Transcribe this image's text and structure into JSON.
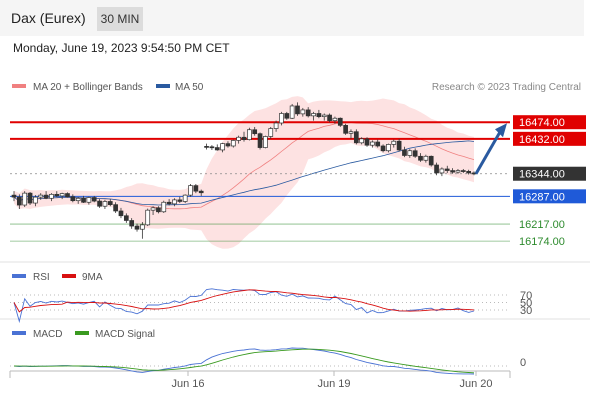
{
  "header": {
    "instrument": "Dax (Eurex)",
    "timeframe": "30 MIN",
    "timestamp": "Monday, June 19, 2023 9:54:50 PM CET"
  },
  "chart_data": {
    "type": "candlestick",
    "legend": [
      {
        "label": "MA 20 + Bollinger Bands",
        "color": "#f08080"
      },
      {
        "label": "MA 50",
        "color": "#2a5aa0"
      }
    ],
    "credit": "Research © 2023 Trading Central",
    "price_range": [
      16144,
      16530
    ],
    "levels": [
      {
        "label": "16474.00",
        "value": 16474,
        "color": "#e00000",
        "style": "resistance"
      },
      {
        "label": "16432.00",
        "value": 16432,
        "color": "#e00000",
        "style": "resistance"
      },
      {
        "label": "16344.00",
        "value": 16344,
        "color": "#333333",
        "style": "last"
      },
      {
        "label": "16287.00",
        "value": 16287,
        "color": "#1f5ad8",
        "style": "pivot"
      },
      {
        "label": "16217.00",
        "value": 16217,
        "color": "#2e8b2e",
        "style": "support"
      },
      {
        "label": "16174.00",
        "value": 16174,
        "color": "#2e8b2e",
        "style": "support"
      }
    ],
    "x_labels": [
      "Jun 16",
      "Jun 19",
      "Jun 20"
    ],
    "candles": [
      [
        16290,
        16300,
        16275,
        16285
      ],
      [
        16285,
        16292,
        16255,
        16265
      ],
      [
        16265,
        16300,
        16260,
        16295
      ],
      [
        16295,
        16298,
        16265,
        16270
      ],
      [
        16270,
        16290,
        16262,
        16285
      ],
      [
        16285,
        16295,
        16278,
        16290
      ],
      [
        16290,
        16300,
        16280,
        16282
      ],
      [
        16282,
        16295,
        16275,
        16292
      ],
      [
        16292,
        16300,
        16285,
        16288
      ],
      [
        16288,
        16296,
        16280,
        16294
      ],
      [
        16294,
        16297,
        16284,
        16286
      ],
      [
        16286,
        16292,
        16272,
        16276
      ],
      [
        16276,
        16285,
        16268,
        16282
      ],
      [
        16282,
        16288,
        16270,
        16272
      ],
      [
        16272,
        16286,
        16266,
        16284
      ],
      [
        16284,
        16288,
        16272,
        16275
      ],
      [
        16275,
        16280,
        16258,
        16262
      ],
      [
        16262,
        16278,
        16255,
        16274
      ],
      [
        16274,
        16280,
        16262,
        16266
      ],
      [
        16266,
        16272,
        16245,
        16250
      ],
      [
        16250,
        16258,
        16232,
        16238
      ],
      [
        16238,
        16244,
        16220,
        16226
      ],
      [
        16226,
        16232,
        16205,
        16212
      ],
      [
        16212,
        16218,
        16198,
        16204
      ],
      [
        16204,
        16222,
        16180,
        16215
      ],
      [
        16215,
        16256,
        16212,
        16252
      ],
      [
        16252,
        16262,
        16240,
        16258
      ],
      [
        16258,
        16262,
        16244,
        16248
      ],
      [
        16248,
        16276,
        16245,
        16272
      ],
      [
        16272,
        16280,
        16264,
        16268
      ],
      [
        16268,
        16282,
        16262,
        16278
      ],
      [
        16278,
        16286,
        16270,
        16274
      ],
      [
        16274,
        16292,
        16270,
        16290
      ],
      [
        16290,
        16318,
        16286,
        16314
      ],
      [
        16314,
        16318,
        16295,
        16300
      ],
      [
        16300,
        16304,
        16288,
        16296
      ],
      [
        16413,
        16420,
        16405,
        16412
      ],
      [
        16412,
        16416,
        16404,
        16410
      ],
      [
        16410,
        16418,
        16402,
        16404
      ],
      [
        16404,
        16422,
        16398,
        16420
      ],
      [
        16420,
        16426,
        16410,
        16414
      ],
      [
        16414,
        16430,
        16410,
        16428
      ],
      [
        16428,
        16440,
        16420,
        16436
      ],
      [
        16436,
        16450,
        16425,
        16430
      ],
      [
        16430,
        16460,
        16428,
        16455
      ],
      [
        16455,
        16462,
        16440,
        16445
      ],
      [
        16445,
        16448,
        16405,
        16410
      ],
      [
        16410,
        16440,
        16408,
        16438
      ],
      [
        16438,
        16462,
        16432,
        16458
      ],
      [
        16458,
        16478,
        16450,
        16472
      ],
      [
        16472,
        16500,
        16466,
        16496
      ],
      [
        16496,
        16500,
        16480,
        16484
      ],
      [
        16484,
        16520,
        16482,
        16515
      ],
      [
        16515,
        16524,
        16490,
        16495
      ],
      [
        16495,
        16510,
        16488,
        16505
      ],
      [
        16505,
        16512,
        16486,
        16490
      ],
      [
        16490,
        16500,
        16478,
        16496
      ],
      [
        16496,
        16505,
        16484,
        16488
      ],
      [
        16488,
        16496,
        16478,
        16492
      ],
      [
        16492,
        16496,
        16474,
        16478
      ],
      [
        16478,
        16488,
        16470,
        16484
      ],
      [
        16484,
        16486,
        16462,
        16466
      ],
      [
        16466,
        16470,
        16442,
        16446
      ],
      [
        16446,
        16456,
        16432,
        16450
      ],
      [
        16450,
        16456,
        16418,
        16422
      ],
      [
        16422,
        16436,
        16418,
        16432
      ],
      [
        16432,
        16436,
        16412,
        16416
      ],
      [
        16416,
        16428,
        16410,
        16424
      ],
      [
        16424,
        16430,
        16410,
        16414
      ],
      [
        16414,
        16418,
        16398,
        16402
      ],
      [
        16402,
        16420,
        16398,
        16418
      ],
      [
        16418,
        16430,
        16410,
        16426
      ],
      [
        16426,
        16432,
        16400,
        16404
      ],
      [
        16404,
        16412,
        16386,
        16390
      ],
      [
        16390,
        16406,
        16384,
        16402
      ],
      [
        16402,
        16408,
        16384,
        16388
      ],
      [
        16388,
        16396,
        16374,
        16378
      ],
      [
        16378,
        16392,
        16372,
        16388
      ],
      [
        16388,
        16390,
        16362,
        16366
      ],
      [
        16366,
        16372,
        16340,
        16346
      ],
      [
        16346,
        16360,
        16338,
        16356
      ],
      [
        16356,
        16364,
        16346,
        16352
      ],
      [
        16352,
        16358,
        16344,
        16348
      ],
      [
        16348,
        16356,
        16344,
        16352
      ],
      [
        16352,
        16356,
        16346,
        16350
      ],
      [
        16350,
        16354,
        16342,
        16346
      ],
      [
        16346,
        16350,
        16340,
        16344
      ]
    ],
    "projection": {
      "from": 16344,
      "to": 16474,
      "color": "#2a5aa0"
    },
    "indicators": [
      {
        "name": "RSI",
        "color": "#4a72d4",
        "signal_name": "9MA",
        "signal_color": "#d81010",
        "levels": [
          "70",
          "50",
          "30"
        ]
      },
      {
        "name": "MACD",
        "color": "#4a72d4",
        "signal_name": "MACD Signal",
        "signal_color": "#3a9a20",
        "levels": [
          "0"
        ]
      }
    ]
  }
}
